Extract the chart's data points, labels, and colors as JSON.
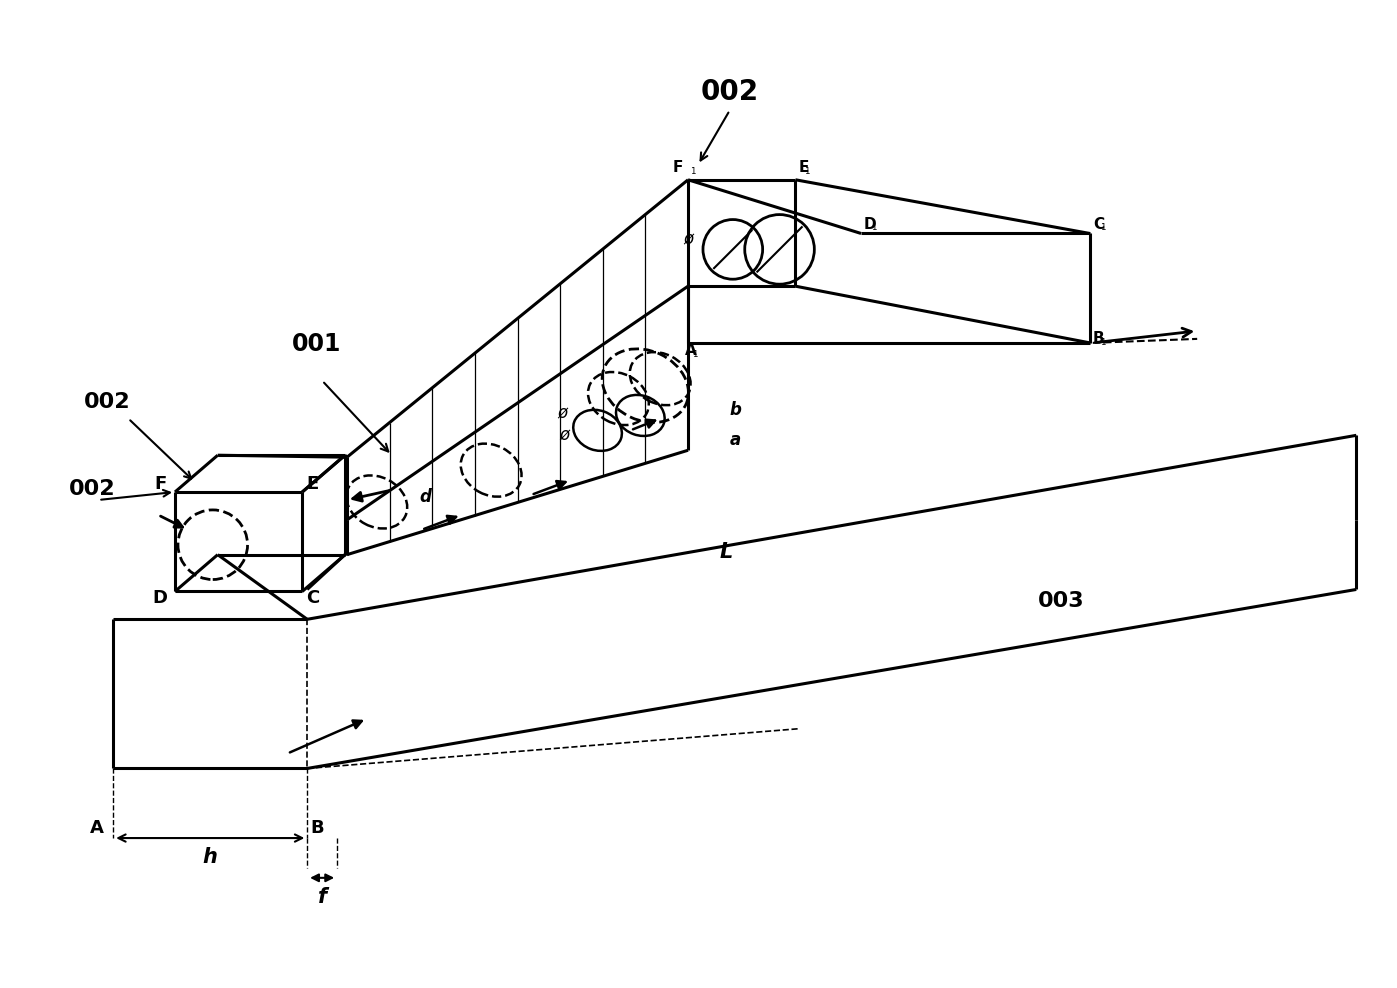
{
  "bg_color": "#ffffff",
  "line_color": "#000000",
  "fig_width": 13.97,
  "fig_height": 9.88,
  "labels": {
    "002_top": "002",
    "001": "001",
    "002_left": "002",
    "003": "003",
    "L": "L",
    "h": "h",
    "f": "f",
    "F1": "F",
    "E1": "E",
    "D1": "D",
    "C1": "C",
    "B1": "B",
    "A1": "A",
    "F": "F",
    "E": "E",
    "D": "D",
    "C": "C",
    "A": "A",
    "B": "B",
    "a": "a",
    "b": "b",
    "d": "d",
    "phi": "ø"
  }
}
